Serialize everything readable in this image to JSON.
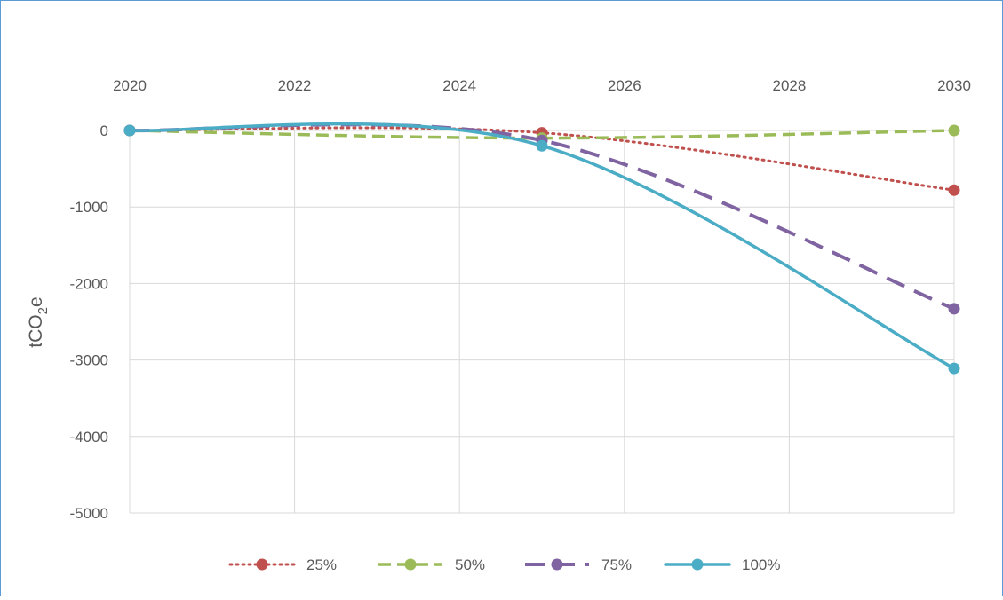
{
  "chart_data": {
    "type": "line",
    "title": "",
    "xlabel": "",
    "ylabel": "tCO",
    "ylabel_subscript": "2",
    "ylabel_suffix": "e",
    "xlim": [
      2020,
      2030
    ],
    "ylim": [
      -5000,
      0
    ],
    "x_ticks": [
      "2020",
      "2022",
      "2024",
      "2026",
      "2028",
      "2030"
    ],
    "y_ticks": [
      "0",
      "-1000",
      "-2000",
      "-3000",
      "-4000",
      "-5000"
    ],
    "x_axis_position": "top",
    "grid": true,
    "legend_position": "bottom",
    "series": [
      {
        "name": "25%",
        "color": "#c0504d",
        "dash": "dotted",
        "points": [
          [
            2020,
            0
          ],
          [
            2025,
            -30
          ],
          [
            2030,
            -780
          ]
        ]
      },
      {
        "name": "50%",
        "color": "#9bbb59",
        "dash": "dashed",
        "points": [
          [
            2020,
            0
          ],
          [
            2025,
            -100
          ],
          [
            2030,
            0
          ]
        ]
      },
      {
        "name": "75%",
        "color": "#8064a2",
        "dash": "longdash",
        "points": [
          [
            2020,
            0
          ],
          [
            2025,
            -130
          ],
          [
            2030,
            -2330
          ]
        ]
      },
      {
        "name": "100%",
        "color": "#4bacc6",
        "dash": "solid",
        "points": [
          [
            2020,
            0
          ],
          [
            2025,
            -200
          ],
          [
            2030,
            -3110
          ]
        ]
      }
    ]
  }
}
